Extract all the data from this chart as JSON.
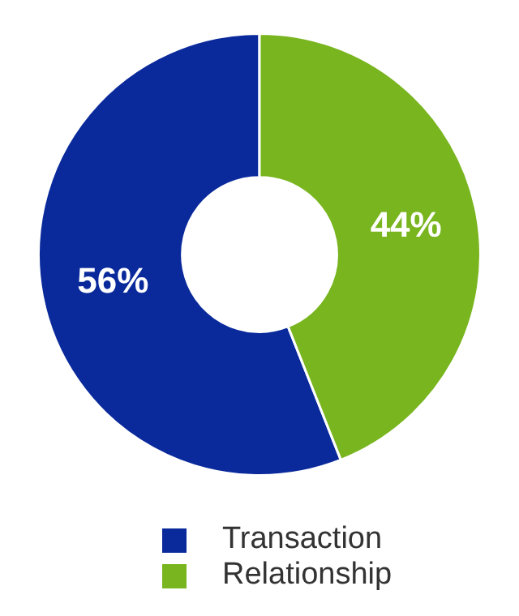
{
  "chart_data": {
    "type": "donut",
    "categories": [
      "Transaction",
      "Relationship"
    ],
    "values": [
      56,
      44
    ],
    "colors": [
      "#0a2a9c",
      "#78b51e"
    ],
    "value_labels": [
      "56%",
      "44%"
    ],
    "legend": "bottom"
  }
}
